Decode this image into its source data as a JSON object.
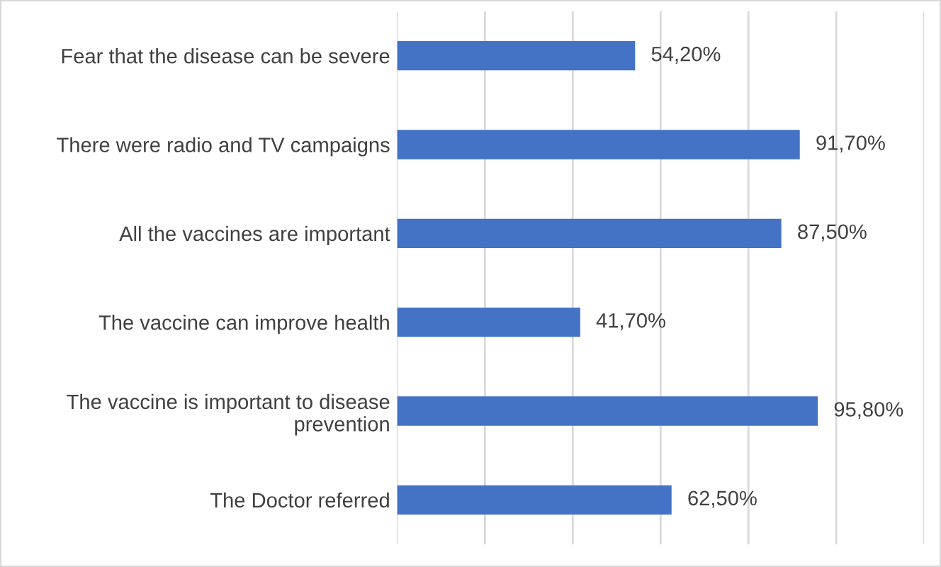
{
  "chart_data": {
    "type": "bar",
    "orientation": "horizontal",
    "categories": [
      "Fear that the disease can be severe",
      "There were radio and TV campaigns",
      "All the vaccines are important",
      "The vaccine can improve health",
      "The vaccine is important to disease prevention",
      "The Doctor referred"
    ],
    "values": [
      54.2,
      91.7,
      87.5,
      41.7,
      95.8,
      62.5
    ],
    "value_labels": [
      "54,20%",
      "91,70%",
      "87,50%",
      "41,70%",
      "95,80%",
      "62,50%"
    ],
    "color": "#4472c4",
    "xlim": [
      0,
      120
    ],
    "xticks": [
      {
        "value": 0,
        "label": null
      },
      {
        "value": 20,
        "label": null
      },
      {
        "value": 40,
        "label": null
      },
      {
        "value": 60,
        "label": null
      },
      {
        "value": 80,
        "label": null
      },
      {
        "value": 100,
        "label": null
      },
      {
        "value": 120,
        "label": null
      }
    ],
    "grid": "x",
    "legend": false
  }
}
